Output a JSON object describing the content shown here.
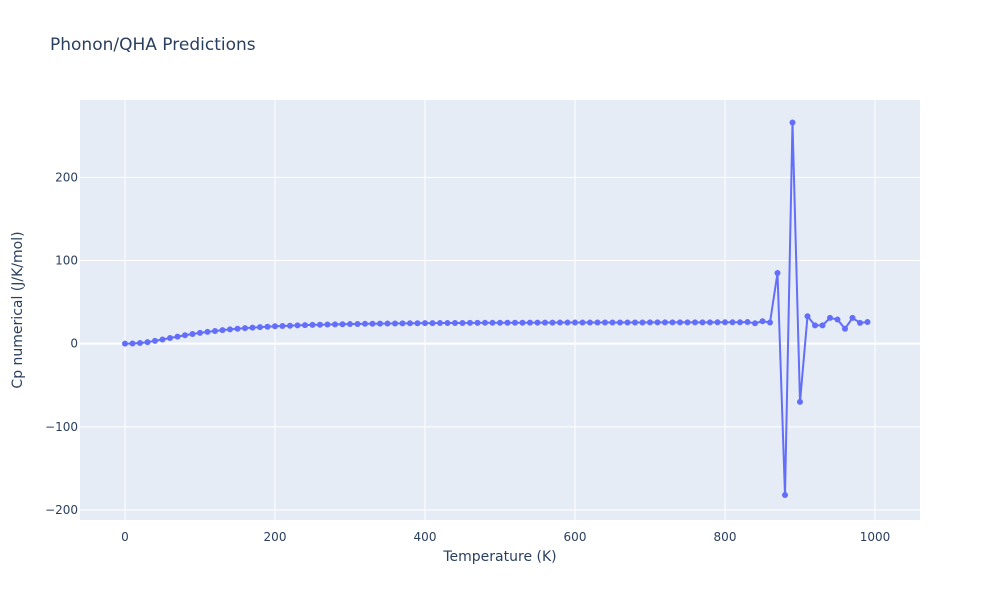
{
  "chart_data": {
    "type": "line",
    "title": "Phonon/QHA Predictions",
    "xlabel": "Temperature (K)",
    "ylabel": "Cp numerical (J/K/mol)",
    "xlim": [
      -60,
      1060
    ],
    "ylim": [
      -212,
      293
    ],
    "x_ticks": [
      0,
      200,
      400,
      600,
      800,
      1000
    ],
    "x_tick_labels": [
      "0",
      "200",
      "400",
      "600",
      "800",
      "1000"
    ],
    "y_ticks": [
      -200,
      -100,
      0,
      100,
      200
    ],
    "y_tick_labels": [
      "−200",
      "−100",
      "0",
      "100",
      "200"
    ],
    "grid": true,
    "markers": true,
    "series": [
      {
        "color": "#636efa",
        "x": [
          0,
          10,
          20,
          30,
          40,
          50,
          60,
          70,
          80,
          90,
          100,
          110,
          120,
          130,
          140,
          150,
          160,
          170,
          180,
          190,
          200,
          210,
          220,
          230,
          240,
          250,
          260,
          270,
          280,
          290,
          300,
          310,
          320,
          330,
          340,
          350,
          360,
          370,
          380,
          390,
          400,
          410,
          420,
          430,
          440,
          450,
          460,
          470,
          480,
          490,
          500,
          510,
          520,
          530,
          540,
          550,
          560,
          570,
          580,
          590,
          600,
          610,
          620,
          630,
          640,
          650,
          660,
          670,
          680,
          690,
          700,
          710,
          720,
          730,
          740,
          750,
          760,
          770,
          780,
          790,
          800,
          810,
          820,
          830,
          840,
          850,
          860,
          870,
          880,
          890,
          900,
          910,
          920,
          930,
          940,
          950,
          960,
          970,
          980,
          990
        ],
        "y": [
          0.0,
          0.2,
          0.8,
          1.9,
          3.4,
          5.0,
          6.8,
          8.5,
          10.1,
          11.6,
          13.0,
          14.2,
          15.3,
          16.3,
          17.2,
          18.0,
          18.7,
          19.3,
          19.9,
          20.4,
          20.9,
          21.3,
          21.6,
          22.0,
          22.3,
          22.6,
          22.8,
          23.0,
          23.2,
          23.4,
          23.6,
          23.7,
          23.9,
          24.0,
          24.1,
          24.2,
          24.3,
          24.4,
          24.5,
          24.6,
          24.7,
          24.7,
          24.8,
          24.8,
          24.9,
          24.9,
          25.0,
          25.0,
          25.1,
          25.1,
          25.1,
          25.2,
          25.2,
          25.2,
          25.3,
          25.3,
          25.3,
          25.3,
          25.4,
          25.4,
          25.4,
          25.4,
          25.4,
          25.5,
          25.5,
          25.5,
          25.5,
          25.5,
          25.5,
          25.5,
          25.6,
          25.6,
          25.6,
          25.6,
          25.6,
          25.6,
          25.6,
          25.6,
          25.6,
          25.7,
          25.7,
          25.7,
          25.7,
          26.0,
          24.5,
          27.0,
          25.5,
          85.0,
          -182.0,
          266.0,
          -70.0,
          33.0,
          22.0,
          22.0,
          31.0,
          29.0,
          18.0,
          31.0,
          25.0,
          26.0
        ]
      }
    ]
  }
}
